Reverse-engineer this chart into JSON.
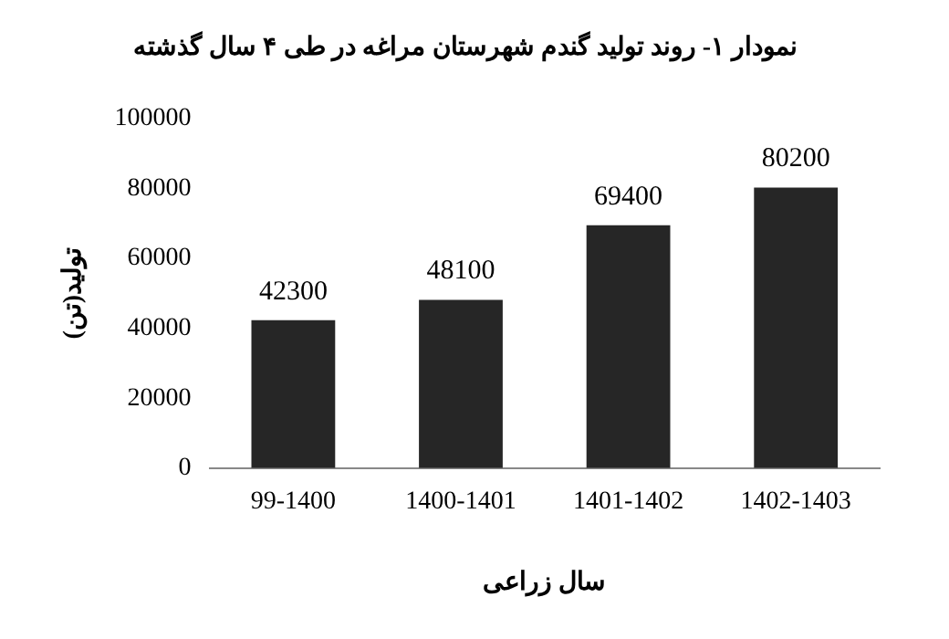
{
  "chart_data": {
    "type": "bar",
    "title": "نمودار ۱- روند تولید گندم شهرستان مراغه در طی ۴ سال گذشته",
    "xlabel": "سال زراعی",
    "ylabel": "تولید(تن)",
    "categories": [
      "99-1400",
      "1400-1401",
      "1401-1402",
      "1402-1403"
    ],
    "values": [
      42300,
      48100,
      69400,
      80200
    ],
    "color": "#262626",
    "ylim": [
      0,
      100000
    ],
    "yticks": [
      0,
      20000,
      40000,
      60000,
      80000,
      100000
    ],
    "grid": false,
    "data_labels": true
  }
}
